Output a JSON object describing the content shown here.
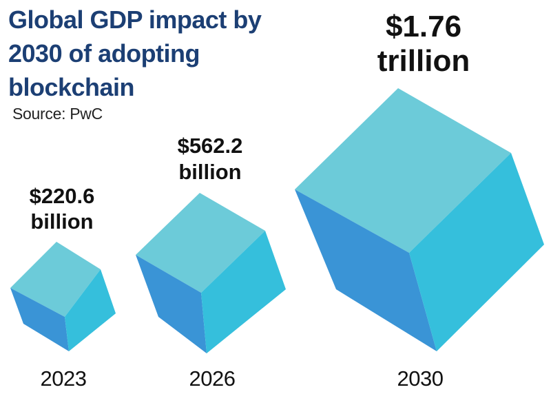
{
  "header": {
    "title": "Global GDP impact by 2030 of adopting blockchain",
    "source": "Source: PwC"
  },
  "colors": {
    "title": "#1c3f74",
    "cube_top": "#6ccbd9",
    "cube_left": "#3a94d6",
    "cube_right": "#35bfdc"
  },
  "chart_data": {
    "type": "bar",
    "title": "Global GDP impact by 2030 of adopting blockchain",
    "source": "Source: PwC",
    "categories": [
      "2023",
      "2026",
      "2030"
    ],
    "values": [
      220.6,
      562.2,
      1760
    ],
    "unit": "billion USD",
    "labels": [
      [
        "$220.6",
        "billion"
      ],
      [
        "$562.2",
        "billion"
      ],
      [
        "$1.76",
        "trillion"
      ]
    ],
    "mark": "cube"
  }
}
